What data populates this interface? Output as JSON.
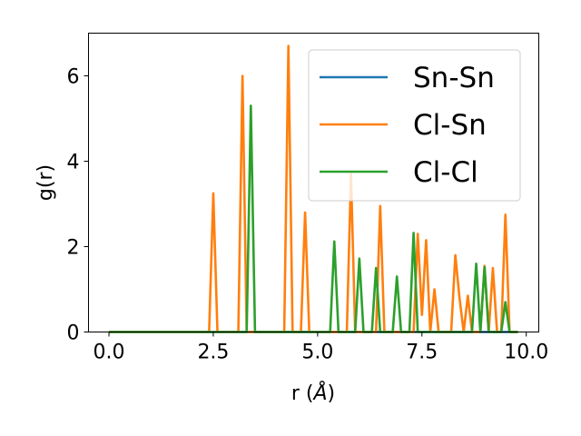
{
  "chart_data": {
    "type": "line",
    "title": "",
    "xlabel": "r (Å)",
    "xlabel_prefix": "r (",
    "xlabel_unit": "Å",
    "xlabel_suffix": ")",
    "ylabel": "g(r)",
    "xlim": [
      -0.49,
      10.3
    ],
    "ylim": [
      0,
      7.0
    ],
    "xticks": [
      0.0,
      2.5,
      5.0,
      7.5,
      10.0
    ],
    "xtick_labels": [
      "0.0",
      "2.5",
      "5.0",
      "7.5",
      "10.0"
    ],
    "yticks": [
      0,
      2,
      4,
      6
    ],
    "ytick_labels": [
      "0",
      "2",
      "4",
      "6"
    ],
    "grid": false,
    "legend_position": "upper right",
    "series": [
      {
        "name": "Sn-Sn",
        "color": "#1f77b4",
        "x": [
          0.0,
          9.8
        ],
        "y": [
          0,
          0
        ]
      },
      {
        "name": "Cl-Sn",
        "color": "#ff7f0e",
        "x": [
          0.0,
          2.4,
          2.5,
          2.6,
          3.1,
          3.2,
          3.3,
          4.2,
          4.3,
          4.4,
          4.6,
          4.7,
          4.8,
          5.7,
          5.8,
          5.9,
          6.4,
          6.5,
          6.6,
          7.3,
          7.4,
          7.5,
          7.6,
          7.7,
          7.8,
          7.9,
          8.2,
          8.3,
          8.4,
          8.5,
          8.6,
          8.7,
          8.9,
          9.0,
          9.1,
          9.2,
          9.3,
          9.4,
          9.5,
          9.6,
          9.8
        ],
        "y": [
          0,
          0,
          3.25,
          0,
          0,
          6.0,
          0,
          0,
          6.7,
          0,
          0,
          2.8,
          0,
          0,
          3.7,
          0,
          0,
          2.95,
          0,
          0,
          2.3,
          0.4,
          2.15,
          0,
          1.0,
          0,
          0,
          1.8,
          0.8,
          0,
          0.85,
          0,
          0,
          1.55,
          0,
          1.5,
          0,
          0,
          2.75,
          0,
          0
        ]
      },
      {
        "name": "Cl-Cl",
        "color": "#2ca02c",
        "x": [
          0.0,
          3.3,
          3.4,
          3.5,
          5.3,
          5.4,
          5.5,
          5.9,
          6.0,
          6.1,
          6.3,
          6.4,
          6.5,
          6.8,
          6.9,
          7.0,
          7.2,
          7.3,
          7.4,
          8.7,
          8.8,
          8.9,
          9.0,
          9.1,
          9.2,
          9.4,
          9.5,
          9.6,
          9.8
        ],
        "y": [
          0,
          0,
          5.3,
          0,
          0,
          2.12,
          0,
          0,
          1.72,
          0,
          0,
          1.5,
          0,
          0,
          1.3,
          0,
          0,
          2.32,
          0,
          0,
          1.6,
          0,
          1.52,
          0,
          0,
          0,
          0.7,
          0,
          0
        ]
      }
    ]
  }
}
